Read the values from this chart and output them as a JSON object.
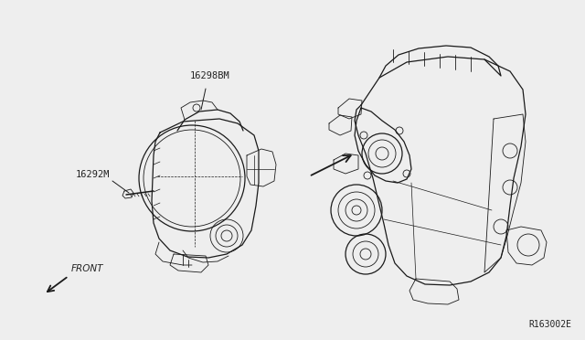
{
  "bg_color": "#eeeeee",
  "line_color": "#1a1a1a",
  "label_color": "#222222",
  "part_number_16298BM": "16298BM",
  "part_number_16292M": "16292M",
  "ref_code": "R163002E",
  "front_label": "FRONT",
  "font_size_parts": 7.5,
  "font_size_ref": 7,
  "font_size_front": 7.5
}
